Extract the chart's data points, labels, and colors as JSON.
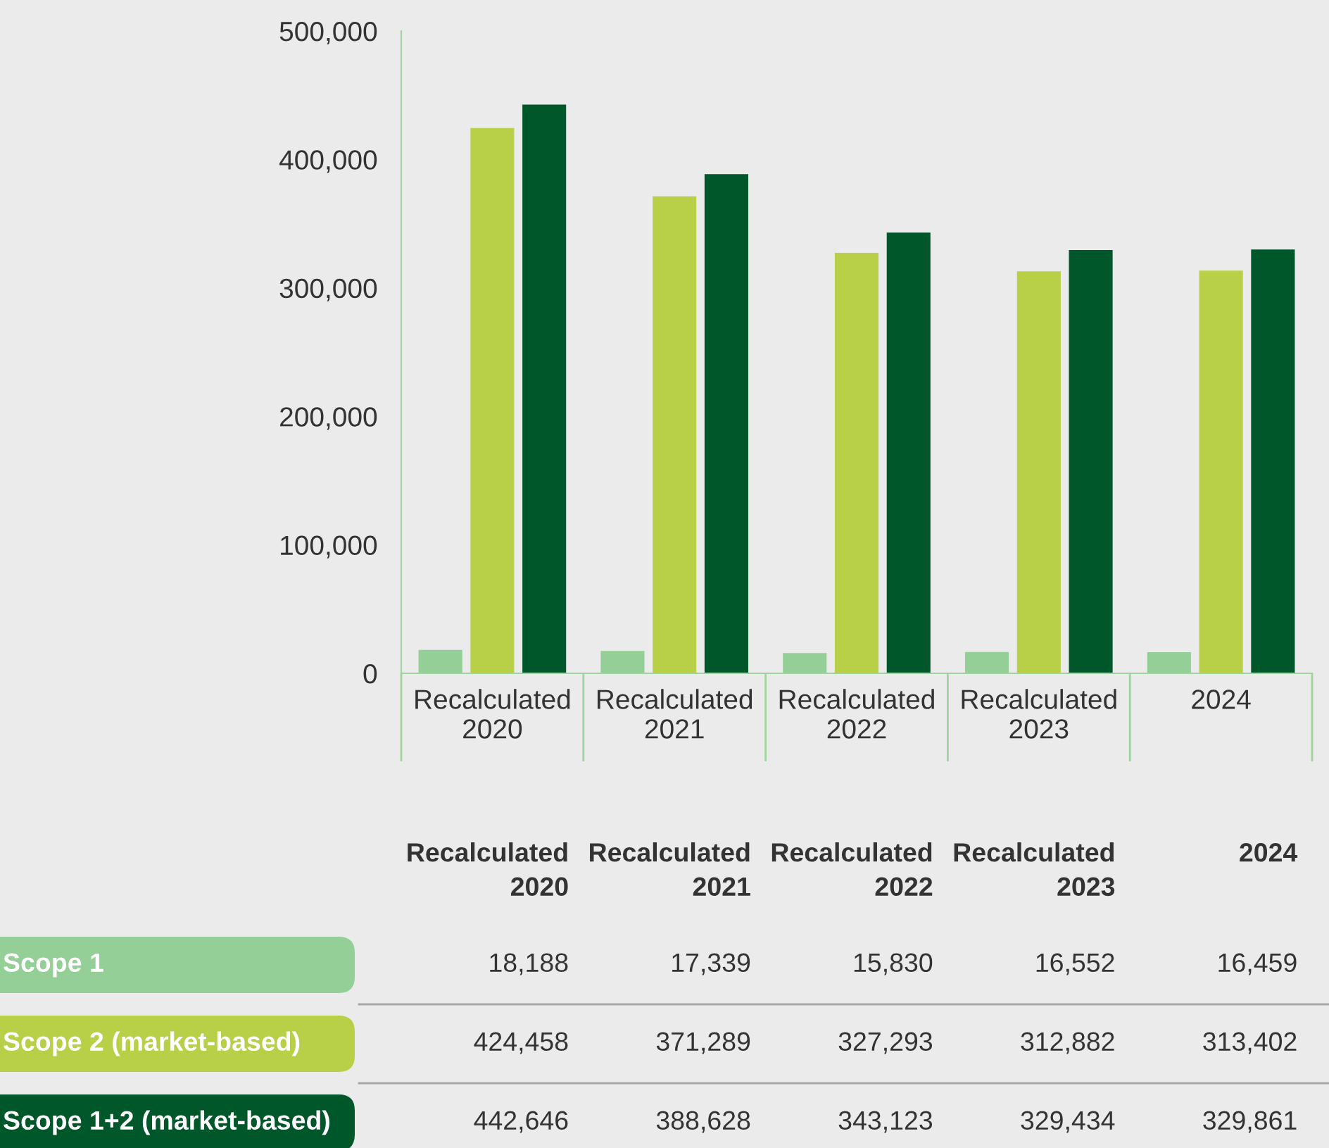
{
  "chart_data": {
    "type": "bar",
    "categories": [
      "Recalculated 2020",
      "Recalculated 2021",
      "Recalculated 2022",
      "Recalculated 2023",
      "2024"
    ],
    "series": [
      {
        "name": "Scope 1",
        "color": "#93cf96",
        "values": [
          18188,
          17339,
          15830,
          16552,
          16459
        ],
        "value_labels": [
          "18,188",
          "17,339",
          "15,830",
          "16,552",
          "16,459"
        ]
      },
      {
        "name": "Scope 2 (market-based)",
        "color": "#b8cf48",
        "values": [
          424458,
          371289,
          327293,
          312882,
          313402
        ],
        "value_labels": [
          "424,458",
          "371,289",
          "327,293",
          "312,882",
          "313,402"
        ]
      },
      {
        "name": "Scope 1+2 (market-based)",
        "color": "#00582a",
        "values": [
          442646,
          388628,
          343123,
          329434,
          329861
        ],
        "value_labels": [
          "442,646",
          "388,628",
          "343,123",
          "329,434",
          "329,861"
        ]
      }
    ],
    "ylim": [
      0,
      500000
    ],
    "yticks": [
      {
        "value": 0,
        "label": "0"
      },
      {
        "value": 100000,
        "label": "100,000"
      },
      {
        "value": 200000,
        "label": "200,000"
      },
      {
        "value": 300000,
        "label": "300,000"
      },
      {
        "value": 400000,
        "label": "400,000"
      },
      {
        "value": 500000,
        "label": "500,000"
      }
    ],
    "grid": false,
    "legend": false
  }
}
